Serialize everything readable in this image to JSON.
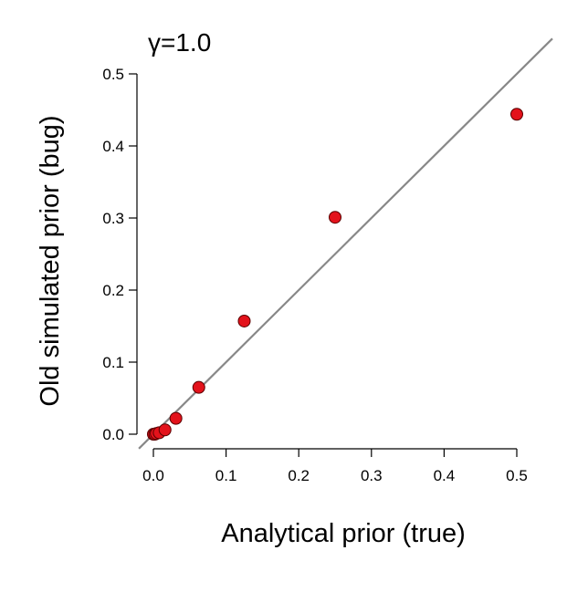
{
  "chart_data": {
    "type": "scatter",
    "title": "",
    "annotation": "γ=1.0",
    "xlabel": "Analytical prior (true)",
    "ylabel": "Old simulated prior (bug)",
    "xlim": [
      0.0,
      0.55
    ],
    "ylim": [
      0.0,
      0.55
    ],
    "xticks": [
      "0.0",
      "0.1",
      "0.2",
      "0.3",
      "0.4",
      "0.5"
    ],
    "yticks": [
      "0.0",
      "0.1",
      "0.2",
      "0.3",
      "0.4",
      "0.5"
    ],
    "grid": false,
    "reference_line": {
      "slope": 1,
      "intercept": 0,
      "color": "#888888"
    },
    "point_color": "#e3121b",
    "point_edge_color": "#5a0000",
    "points": [
      {
        "x": 0.0,
        "y": 0.0
      },
      {
        "x": 0.002,
        "y": 0.0
      },
      {
        "x": 0.004,
        "y": 0.001
      },
      {
        "x": 0.008,
        "y": 0.002
      },
      {
        "x": 0.016,
        "y": 0.006
      },
      {
        "x": 0.031,
        "y": 0.022
      },
      {
        "x": 0.0625,
        "y": 0.065
      },
      {
        "x": 0.125,
        "y": 0.157
      },
      {
        "x": 0.25,
        "y": 0.301
      },
      {
        "x": 0.5,
        "y": 0.444
      }
    ]
  }
}
